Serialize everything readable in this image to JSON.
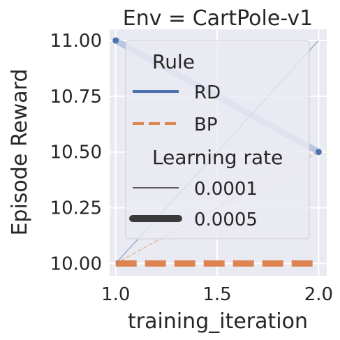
{
  "chart_data": {
    "type": "line",
    "title": "Env = CartPole-v1",
    "xlabel": "training_iteration",
    "ylabel": "Episode Reward",
    "xlim": [
      0.97,
      2.04
    ],
    "ylim": [
      9.945,
      11.05
    ],
    "x_ticks": [
      1.0,
      1.5,
      2.0
    ],
    "x_tick_labels": [
      "1.0",
      "1.5",
      "2.0"
    ],
    "y_ticks": [
      10.0,
      10.25,
      10.5,
      10.75,
      11.0
    ],
    "y_tick_labels": [
      "10.00",
      "10.25",
      "10.50",
      "10.75",
      "11.00"
    ],
    "grid": true,
    "legend": {
      "placement": "top-right",
      "hue_title": "Rule",
      "hue_entries": [
        "RD",
        "BP"
      ],
      "size_title": "Learning rate",
      "size_entries": [
        "0.0001",
        "0.0005"
      ]
    },
    "series": [
      {
        "name": "RD",
        "rule": "RD",
        "learning_rate": "0.0001",
        "x": [
          1,
          2
        ],
        "y": [
          10.0,
          11.0
        ],
        "color": "#4c72b0",
        "dash": "solid",
        "width": "thin"
      },
      {
        "name": "RD",
        "rule": "RD",
        "learning_rate": "0.0005",
        "x": [
          1,
          2
        ],
        "y": [
          11.0,
          10.5
        ],
        "color": "#4c72b0",
        "dash": "solid",
        "width": "thick"
      },
      {
        "name": "BP",
        "rule": "BP",
        "learning_rate": "0.0001",
        "x": [
          1,
          2
        ],
        "y": [
          10.0,
          10.5
        ],
        "color": "#dd8452",
        "dash": "dashed",
        "width": "thin"
      },
      {
        "name": "BP",
        "rule": "BP",
        "learning_rate": "0.0005",
        "x": [
          1,
          2
        ],
        "y": [
          10.0,
          10.0
        ],
        "color": "#dd8452",
        "dash": "dashed",
        "width": "thick"
      }
    ]
  }
}
